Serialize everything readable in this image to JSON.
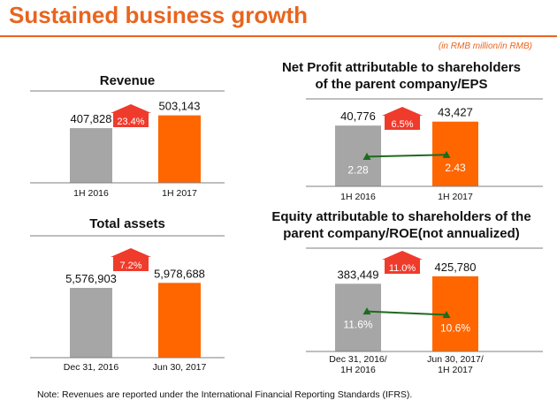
{
  "page": {
    "title": "Sustained business growth",
    "unit_note": "(in RMB million/in RMB)",
    "footnote": "Note: Revenues are reported under the International Financial Reporting Standards (IFRS)."
  },
  "colors": {
    "accent": "#e8651f",
    "bar_prior": "#a6a6a6",
    "bar_current": "#ff6600",
    "growth_arrow": "#ef3b2c",
    "line_series": "#1e6b1e",
    "axis": "#7f7f7f"
  },
  "chart_data": [
    {
      "id": "revenue",
      "type": "bar",
      "title": "Revenue",
      "title_lines": [
        "Revenue"
      ],
      "categories": [
        [
          "1H 2016"
        ],
        [
          "1H 2017"
        ]
      ],
      "series": [
        {
          "values": [
            407828,
            503143
          ]
        }
      ],
      "value_labels": [
        "407,828",
        "503,143"
      ],
      "growth_label": "23.4%",
      "ylim": [
        0,
        560000
      ],
      "legend": "none",
      "grid": false
    },
    {
      "id": "net_profit",
      "type": "bar",
      "title": "Net Profit attributable to shareholders of the parent company/EPS",
      "title_lines": [
        "Net Profit attributable to shareholders",
        "of the parent company/EPS"
      ],
      "categories": [
        [
          "1H 2016"
        ],
        [
          "1H 2017"
        ]
      ],
      "series": [
        {
          "values": [
            40776,
            43427
          ]
        }
      ],
      "value_labels": [
        "40,776",
        "43,427"
      ],
      "growth_label": "6.5%",
      "ylim": [
        0,
        48000
      ],
      "line_series": {
        "values": [
          2.28,
          2.43
        ],
        "labels": [
          "2.28",
          "2.43"
        ],
        "ylim": [
          0,
          5.5
        ]
      },
      "legend": "none",
      "grid": false
    },
    {
      "id": "total_assets",
      "type": "bar",
      "title": "Total assets",
      "title_lines": [
        "Total assets"
      ],
      "categories": [
        [
          "Dec 31, 2016"
        ],
        [
          "Jun 30, 2017"
        ]
      ],
      "series": [
        {
          "values": [
            5576903,
            5978688
          ]
        }
      ],
      "value_labels": [
        "5,576,903",
        "5,978,688"
      ],
      "growth_label": "7.2%",
      "ylim": [
        0,
        7200000
      ],
      "legend": "none",
      "grid": false
    },
    {
      "id": "equity",
      "type": "bar",
      "title": "Equity attributable to shareholders of the parent company/ROE(not annualized)",
      "title_lines": [
        "Equity attributable to shareholders of the",
        "parent company/ROE(not annualized)"
      ],
      "categories": [
        [
          "Dec 31, 2016/",
          "1H 2016"
        ],
        [
          "Jun 30, 2017/",
          "1H 2017"
        ]
      ],
      "series": [
        {
          "values": [
            383449,
            425780
          ]
        }
      ],
      "value_labels": [
        "383,449",
        "425,780"
      ],
      "growth_label": "11.0%",
      "ylim": [
        0,
        470000
      ],
      "line_series": {
        "values": [
          11.6,
          10.6
        ],
        "labels": [
          "11.6%",
          "10.6%"
        ],
        "ylim": [
          0,
          24
        ]
      },
      "legend": "none",
      "grid": false
    }
  ]
}
